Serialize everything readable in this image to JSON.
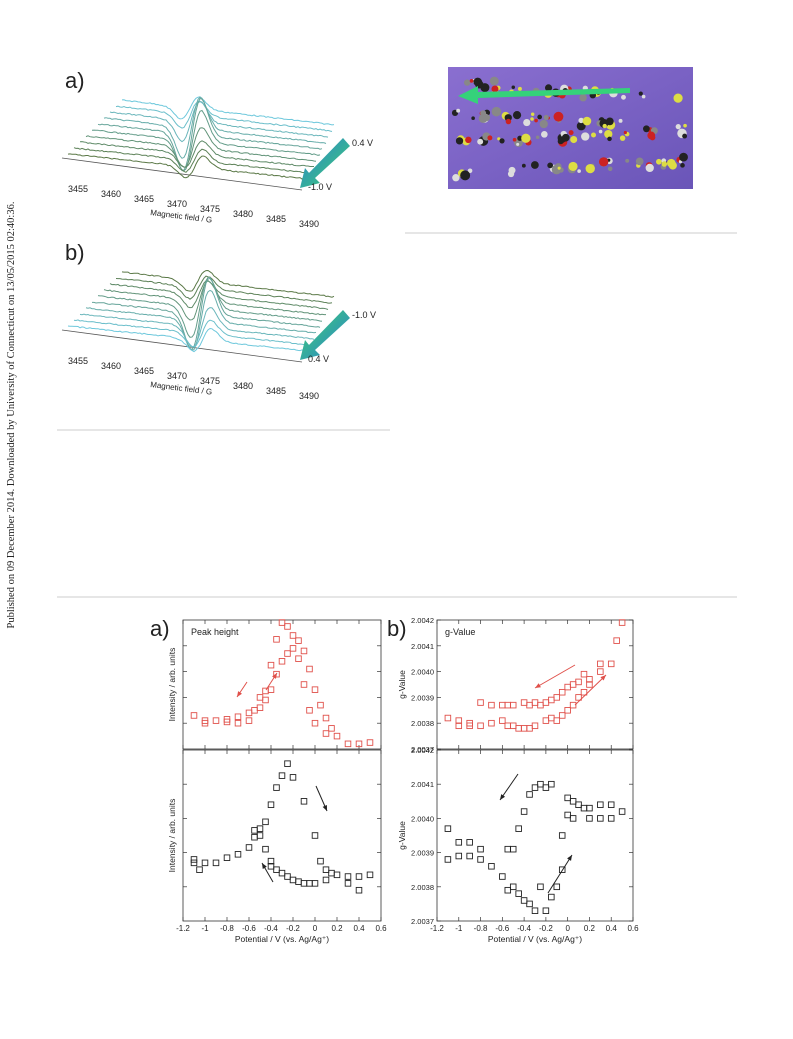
{
  "sidebar": "Published on 09 December 2014. Downloaded by University of Connecticut on 13/05/2015 02:40:36.",
  "figure_top": {
    "panels": [
      {
        "letter": "a)",
        "field_ticks": [
          3455,
          3460,
          3465,
          3470,
          3475,
          3480,
          3485,
          3490
        ],
        "field_label": "Magnetic field / G",
        "start_label": "0.4 V",
        "end_label": "-1.0 V"
      },
      {
        "letter": "b)",
        "field_ticks": [
          3455,
          3460,
          3465,
          3470,
          3475,
          3480,
          3485,
          3490
        ],
        "field_label": "Magnetic field / G",
        "start_label": "-1.0 V",
        "end_label": "0.4 V"
      }
    ]
  },
  "chart_data": [
    {
      "type": "scatter",
      "letter": "a)",
      "title": "Peak height",
      "ylabel": "Intensity / arb. units",
      "color": "#e0504a",
      "x": [
        -1.1,
        -1.0,
        -0.9,
        -0.8,
        -0.7,
        -0.6,
        -0.5,
        -0.45,
        -0.4,
        -0.35,
        -0.3,
        -0.25,
        -0.2,
        -0.15,
        -0.1,
        -0.05,
        0,
        0.05,
        0.1,
        0.15,
        0.2,
        0.3,
        0.4,
        0.5,
        0.1,
        0,
        -0.05,
        -0.1,
        -0.15,
        -0.2,
        -0.25,
        -0.3,
        -0.35,
        -0.4,
        -0.45,
        -0.5,
        -0.55,
        -0.6,
        -0.7,
        -0.8,
        -1.0
      ],
      "y": [
        2.6,
        2.0,
        2.2,
        2.3,
        2.5,
        2.8,
        3.2,
        3.8,
        4.6,
        5.8,
        6.8,
        7.4,
        7.8,
        8.4,
        7.6,
        6.2,
        4.6,
        3.4,
        2.4,
        1.6,
        1.0,
        0.4,
        0.4,
        0.5,
        1.2,
        2.0,
        3.0,
        5.0,
        7.0,
        8.8,
        9.5,
        9.8,
        8.5,
        6.5,
        4.5,
        4.0,
        3.0,
        2.2,
        2.0,
        2.1,
        2.2
      ],
      "xlim": [
        -1.2,
        0.6
      ],
      "xticks": [
        -1.2,
        -1,
        -0.8,
        -0.6,
        -0.4,
        -0.2,
        0,
        0.2,
        0.4,
        0.6
      ],
      "ylim": [
        0,
        10
      ]
    },
    {
      "type": "scatter",
      "letter": "b)",
      "title": "g-Value",
      "ylabel": "g-Value",
      "color": "#e0504a",
      "x": [
        0.5,
        0.45,
        0.4,
        0.3,
        0.3,
        0.2,
        0.15,
        0.1,
        0.05,
        0,
        -0.05,
        -0.1,
        -0.15,
        -0.2,
        -0.25,
        -0.3,
        -0.35,
        -0.4,
        -0.5,
        -0.55,
        -0.6,
        -0.7,
        -0.8,
        -0.9,
        -1.0,
        -1.1,
        -1.0,
        -0.9,
        -0.8,
        -0.7,
        -0.6,
        -0.55,
        -0.5,
        -0.45,
        -0.4,
        -0.35,
        -0.3,
        -0.2,
        -0.15,
        -0.1,
        -0.05,
        0,
        0.05,
        0.1,
        0.15,
        0.2
      ],
      "y": [
        2.00419,
        2.00412,
        2.00403,
        2.00403,
        2.004,
        2.00397,
        2.00399,
        2.00396,
        2.00395,
        2.00394,
        2.00392,
        2.0039,
        2.00389,
        2.00388,
        2.00387,
        2.00388,
        2.00387,
        2.00388,
        2.00387,
        2.00387,
        2.00387,
        2.00387,
        2.00388,
        2.0038,
        2.00381,
        2.00382,
        2.00379,
        2.00379,
        2.00379,
        2.0038,
        2.00381,
        2.00379,
        2.00379,
        2.00378,
        2.00378,
        2.00378,
        2.00379,
        2.00381,
        2.00382,
        2.00381,
        2.00383,
        2.00385,
        2.00387,
        2.0039,
        2.00392,
        2.00395
      ],
      "xlim": [
        -1.2,
        0.6
      ],
      "xticks": [
        -1.2,
        -1,
        -0.8,
        -0.6,
        -0.4,
        -0.2,
        0,
        0.2,
        0.4,
        0.6
      ],
      "ylim": [
        2.0037,
        2.0042
      ],
      "yticks": [
        2.0037,
        2.0038,
        2.0039,
        {
          "value": 2.004,
          "label": "2.0040"
        },
        2.0041,
        2.0042
      ]
    },
    {
      "type": "scatter",
      "ylabel": "Intensity / arb. units",
      "xlabel": "Potential / V (vs. Ag/Ag⁺)",
      "color": "#222222",
      "x": [
        -1.1,
        -1.05,
        -1.0,
        -0.9,
        -0.8,
        -0.7,
        -0.6,
        -0.55,
        -0.5,
        -0.45,
        -0.4,
        -0.35,
        -0.3,
        -0.25,
        -0.2,
        -0.1,
        0,
        0.05,
        0.1,
        0.15,
        0.2,
        0.3,
        0.4,
        0.5,
        -1.1,
        0.1,
        0,
        -0.05,
        -0.1,
        -0.15,
        -0.2,
        -0.25,
        -0.3,
        -0.35,
        -0.4,
        -0.45,
        -0.5,
        -0.55,
        -0.4,
        0.3,
        0.4
      ],
      "y": [
        3.6,
        3.0,
        3.4,
        3.4,
        3.7,
        3.9,
        4.3,
        4.9,
        5.4,
        5.8,
        6.8,
        7.8,
        8.5,
        9.2,
        8.4,
        7.0,
        5.0,
        3.5,
        3.0,
        2.8,
        2.7,
        2.6,
        2.6,
        2.7,
        3.4,
        2.4,
        2.2,
        2.2,
        2.2,
        2.3,
        2.4,
        2.6,
        2.8,
        3.0,
        3.5,
        4.2,
        5.0,
        5.3,
        3.2,
        2.2,
        1.8
      ],
      "xlim": [
        -1.2,
        0.6
      ],
      "xticks": [
        -1.2,
        -1,
        -0.8,
        -0.6,
        -0.4,
        -0.2,
        0,
        0.2,
        0.4,
        0.6
      ],
      "ylim": [
        0,
        10
      ]
    },
    {
      "type": "scatter",
      "ylabel": "g-Value",
      "xlabel": "Potential / V (vs. Ag/Ag⁺)",
      "color": "#222222",
      "x": [
        -1.1,
        -1.1,
        -1.0,
        -1.0,
        -0.9,
        -0.9,
        -0.8,
        -0.8,
        -0.7,
        -0.6,
        -0.55,
        -0.5,
        -0.55,
        -0.5,
        -0.45,
        -0.45,
        -0.4,
        -0.4,
        -0.35,
        -0.35,
        -0.3,
        -0.3,
        -0.25,
        -0.25,
        -0.2,
        -0.2,
        -0.15,
        -0.15,
        -0.1,
        -0.05,
        0,
        0,
        0.05,
        0.05,
        0.1,
        0.15,
        0.2,
        0.2,
        0.3,
        0.3,
        0.4,
        0.4,
        0.5,
        -0.05
      ],
      "y": [
        2.00397,
        2.00388,
        2.00393,
        2.00389,
        2.00393,
        2.00389,
        2.00391,
        2.00388,
        2.00386,
        2.00383,
        2.00391,
        2.00391,
        2.00379,
        2.0038,
        2.00378,
        2.00397,
        2.00376,
        2.00402,
        2.00407,
        2.00375,
        2.00409,
        2.00373,
        2.0041,
        2.0038,
        2.00373,
        2.00409,
        2.0041,
        2.00377,
        2.0038,
        2.00395,
        2.00406,
        2.00401,
        2.00405,
        2.004,
        2.00404,
        2.00403,
        2.00403,
        2.004,
        2.00404,
        2.004,
        2.00404,
        2.004,
        2.00402,
        2.00385
      ],
      "xlim": [
        -1.2,
        0.6
      ],
      "xticks": [
        -1.2,
        -1,
        -0.8,
        -0.6,
        -0.4,
        -0.2,
        0,
        0.2,
        0.4,
        0.6
      ],
      "ylim": [
        2.0037,
        2.0042
      ],
      "yticks": [
        2.0037,
        2.0038,
        2.0039,
        {
          "value": 2.004,
          "label": "2.0040"
        },
        2.0041,
        2.0042
      ]
    }
  ]
}
